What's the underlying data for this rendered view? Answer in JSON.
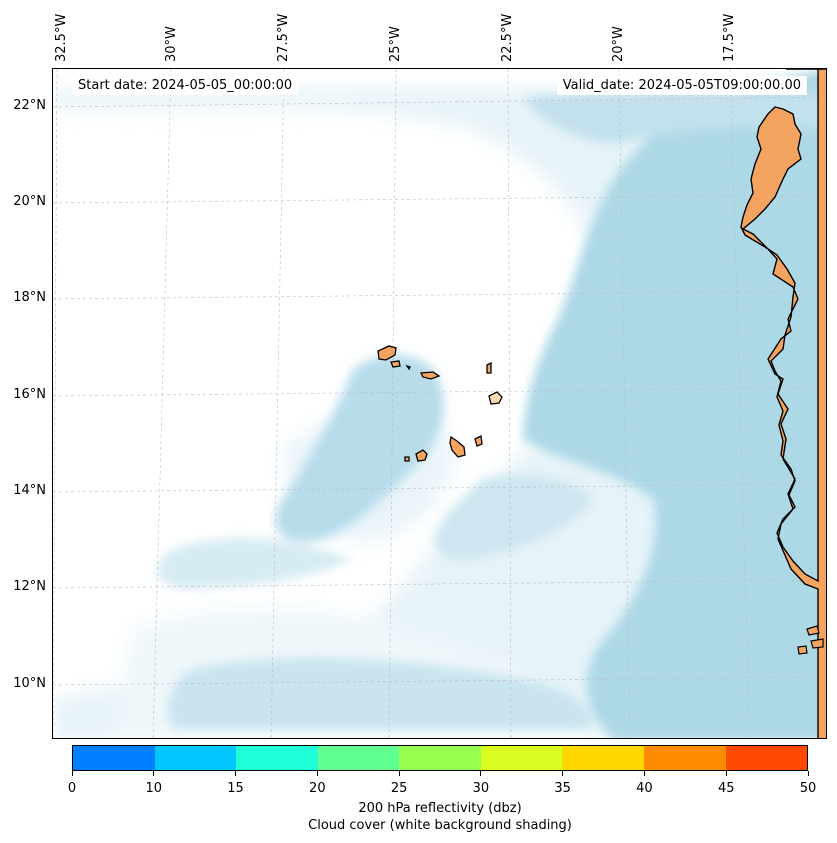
{
  "map": {
    "start_date_text": "Start date: 2024-05-05_00:00:00",
    "valid_date_text": "Valid_date: 2024-05-05T09:00:00.00",
    "lon_labels": [
      "32.5°W",
      "30°W",
      "27.5°W",
      "25°W",
      "22.5°W",
      "20°W",
      "17.5°W"
    ],
    "lat_labels": [
      "22°N",
      "20°N",
      "18°N",
      "16°N",
      "14°N",
      "12°N",
      "10°N"
    ],
    "colors": {
      "land": "#f4a460",
      "cloud": "#add8e6",
      "coast": "#000000",
      "grid": "#bbbbbb"
    }
  },
  "colorbar": {
    "ticks": [
      "0",
      "10",
      "15",
      "20",
      "25",
      "30",
      "35",
      "40",
      "45",
      "50"
    ],
    "colors": [
      "#0080ff",
      "#00c8ff",
      "#20ffd8",
      "#60ff90",
      "#98ff50",
      "#d8ff20",
      "#ffd800",
      "#ff8c00",
      "#ff4800"
    ],
    "title_line1": "200 hPa reflectivity (dbz)",
    "title_line2": "Cloud cover (white background shading)"
  }
}
